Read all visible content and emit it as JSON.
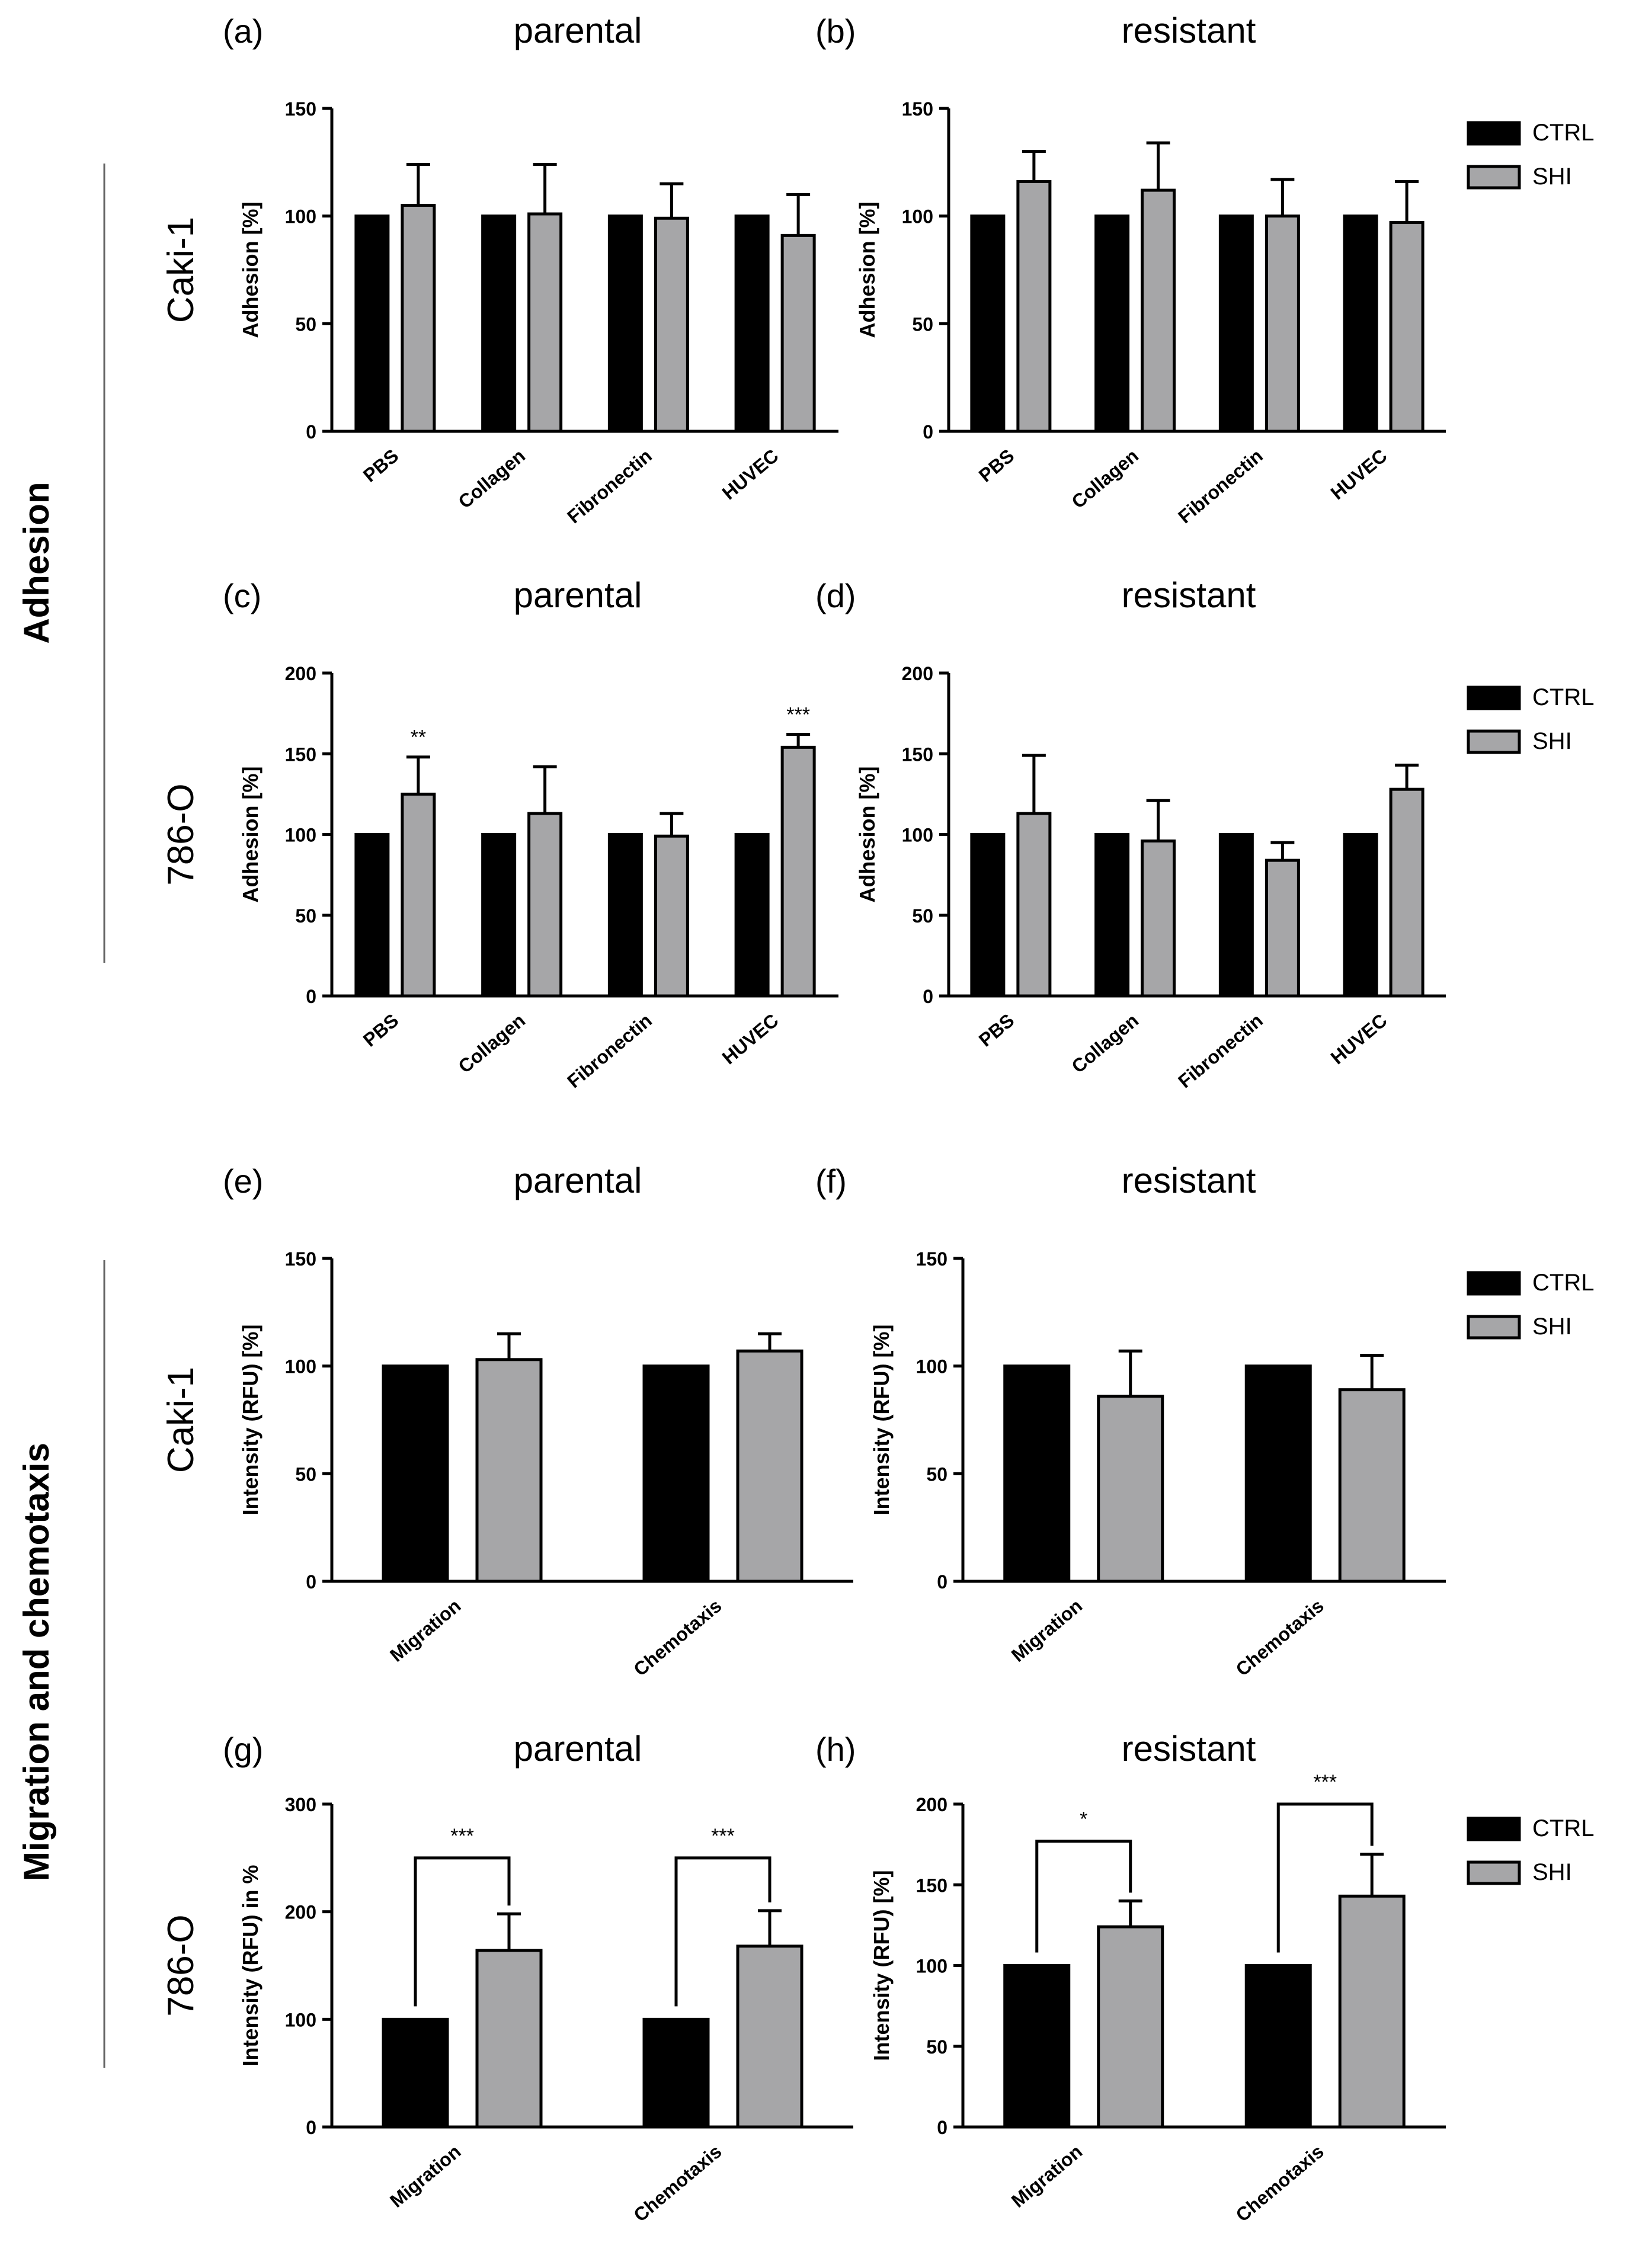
{
  "colors": {
    "CTRL": "#000000",
    "SHI": "#a6a6a8"
  },
  "sections": [
    {
      "label": "Adhesion"
    },
    {
      "label": "Migration and chemotaxis"
    }
  ],
  "legend": [
    "CTRL",
    "SHI"
  ],
  "chart_data": [
    {
      "id": "a",
      "type": "bar",
      "panel_letter": "(a)",
      "title": "parental",
      "row_label": "Caki-1",
      "ylabel": "Adhesion [%]",
      "ylim": [
        0,
        150
      ],
      "yticks": [
        0,
        50,
        100,
        150
      ],
      "categories": [
        "PBS",
        "Collagen",
        "Fibronectin",
        "HUVEC"
      ],
      "series": [
        {
          "name": "CTRL",
          "values": [
            100,
            100,
            100,
            100
          ],
          "errors": [
            0,
            0,
            0,
            0
          ]
        },
        {
          "name": "SHI",
          "values": [
            105,
            101,
            99,
            91
          ],
          "errors": [
            19,
            23,
            16,
            19
          ]
        }
      ],
      "significance": [],
      "legend": true
    },
    {
      "id": "b",
      "type": "bar",
      "panel_letter": "(b)",
      "title": "resistant",
      "ylabel": "Adhesion [%]",
      "ylim": [
        0,
        150
      ],
      "yticks": [
        0,
        50,
        100,
        150
      ],
      "categories": [
        "PBS",
        "Collagen",
        "Fibronectin",
        "HUVEC"
      ],
      "series": [
        {
          "name": "CTRL",
          "values": [
            100,
            100,
            100,
            100
          ],
          "errors": [
            0,
            0,
            0,
            0
          ]
        },
        {
          "name": "SHI",
          "values": [
            116,
            112,
            100,
            97
          ],
          "errors": [
            14,
            22,
            17,
            19
          ]
        }
      ],
      "significance": [],
      "legend": true
    },
    {
      "id": "c",
      "type": "bar",
      "panel_letter": "(c)",
      "title": "parental",
      "row_label": "786-O",
      "ylabel": "Adhesion [%]",
      "ylim": [
        0,
        200
      ],
      "yticks": [
        0,
        50,
        100,
        150,
        200
      ],
      "categories": [
        "PBS",
        "Collagen",
        "Fibronectin",
        "HUVEC"
      ],
      "series": [
        {
          "name": "CTRL",
          "values": [
            100,
            100,
            100,
            100
          ],
          "errors": [
            0,
            0,
            0,
            0
          ]
        },
        {
          "name": "SHI",
          "values": [
            125,
            113,
            99,
            154
          ],
          "errors": [
            23,
            29,
            14,
            8
          ]
        }
      ],
      "significance": [
        {
          "category": 0,
          "label": "**",
          "style": "star"
        },
        {
          "category": 3,
          "label": "***",
          "style": "star"
        }
      ],
      "legend": true
    },
    {
      "id": "d",
      "type": "bar",
      "panel_letter": "(d)",
      "title": "resistant",
      "ylabel": "Adhesion [%]",
      "ylim": [
        0,
        200
      ],
      "yticks": [
        0,
        50,
        100,
        150,
        200
      ],
      "categories": [
        "PBS",
        "Collagen",
        "Fibronectin",
        "HUVEC"
      ],
      "series": [
        {
          "name": "CTRL",
          "values": [
            100,
            100,
            100,
            100
          ],
          "errors": [
            0,
            0,
            0,
            0
          ]
        },
        {
          "name": "SHI",
          "values": [
            113,
            96,
            84,
            128
          ],
          "errors": [
            36,
            25,
            11,
            15
          ]
        }
      ],
      "significance": [],
      "legend": true
    },
    {
      "id": "e",
      "type": "bar",
      "panel_letter": "(e)",
      "title": "parental",
      "row_label": "Caki-1",
      "ylabel": "Intensity (RFU) [%]",
      "ylim": [
        0,
        150
      ],
      "yticks": [
        0,
        50,
        100,
        150
      ],
      "categories": [
        "Migration",
        "Chemotaxis"
      ],
      "series": [
        {
          "name": "CTRL",
          "values": [
            100,
            100
          ],
          "errors": [
            0,
            0
          ]
        },
        {
          "name": "SHI",
          "values": [
            103,
            107
          ],
          "errors": [
            12,
            8
          ]
        }
      ],
      "significance": [],
      "legend": true
    },
    {
      "id": "f",
      "type": "bar",
      "panel_letter": "(f)",
      "title": "resistant",
      "ylabel": "Intensity (RFU) [%]",
      "ylim": [
        0,
        150
      ],
      "yticks": [
        0,
        50,
        100,
        150
      ],
      "categories": [
        "Migration",
        "Chemotaxis"
      ],
      "series": [
        {
          "name": "CTRL",
          "values": [
            100,
            100
          ],
          "errors": [
            0,
            0
          ]
        },
        {
          "name": "SHI",
          "values": [
            86,
            89
          ],
          "errors": [
            21,
            16
          ]
        }
      ],
      "significance": [],
      "legend": true
    },
    {
      "id": "g",
      "type": "bar",
      "panel_letter": "(g)",
      "title": "parental",
      "row_label": "786-O",
      "ylabel": "Intensity (RFU) in %",
      "ylim": [
        0,
        300
      ],
      "yticks": [
        0,
        100,
        200,
        300
      ],
      "categories": [
        "Migration",
        "Chemotaxis"
      ],
      "series": [
        {
          "name": "CTRL",
          "values": [
            100,
            100
          ],
          "errors": [
            0,
            0
          ]
        },
        {
          "name": "SHI",
          "values": [
            164,
            168
          ],
          "errors": [
            34,
            33
          ]
        }
      ],
      "significance": [
        {
          "category": 0,
          "label": "***",
          "style": "bracket",
          "level": 250
        },
        {
          "category": 1,
          "label": "***",
          "style": "bracket",
          "level": 250
        }
      ],
      "legend": false
    },
    {
      "id": "h",
      "type": "bar",
      "panel_letter": "(h)",
      "title": "resistant",
      "ylabel": "Intensity (RFU) [%]",
      "ylim": [
        0,
        200
      ],
      "yticks": [
        0,
        50,
        100,
        150,
        200
      ],
      "categories": [
        "Migration",
        "Chemotaxis"
      ],
      "series": [
        {
          "name": "CTRL",
          "values": [
            100,
            100
          ],
          "errors": [
            0,
            0
          ]
        },
        {
          "name": "SHI",
          "values": [
            124,
            143
          ],
          "errors": [
            16,
            26
          ]
        }
      ],
      "significance": [
        {
          "category": 0,
          "label": "*",
          "style": "bracket",
          "level": 177
        },
        {
          "category": 1,
          "label": "***",
          "style": "bracket",
          "level": 200
        }
      ],
      "legend": true
    }
  ]
}
